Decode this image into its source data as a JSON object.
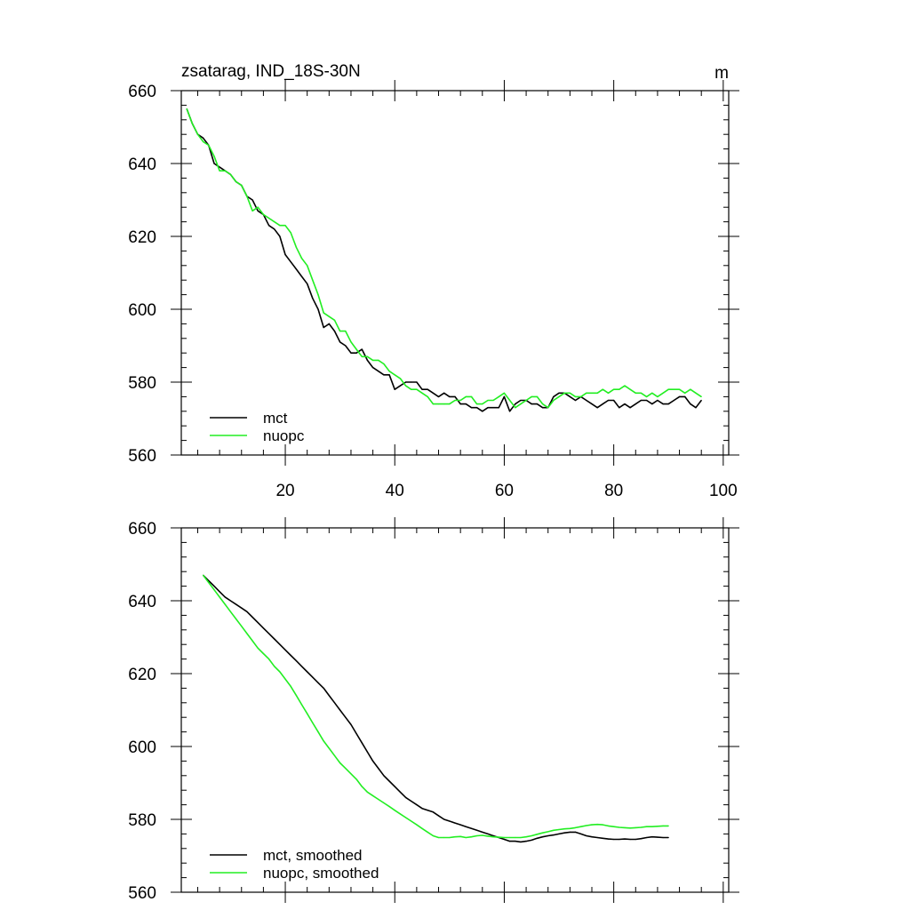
{
  "chart_data": [
    {
      "type": "line",
      "title": "zsatarag, IND_18S-30N",
      "units": "m",
      "xlabel": "",
      "ylabel": "",
      "xlim": [
        1,
        101
      ],
      "ylim": [
        560,
        660
      ],
      "xticks": [
        20,
        40,
        60,
        80,
        100
      ],
      "xtick_labels": [
        "20",
        "40",
        "60",
        "80",
        "100"
      ],
      "yticks": [
        560,
        580,
        600,
        620,
        640,
        660
      ],
      "ytick_labels": [
        "560",
        "580",
        "600",
        "620",
        "640",
        "660"
      ],
      "show_xtick_labels": true,
      "legend_position": "bottom-left",
      "series": [
        {
          "name": "mct",
          "color": "#000000",
          "x_start": 2,
          "values": [
            655,
            651,
            648,
            647,
            645,
            640,
            639,
            638,
            637,
            635,
            634,
            631,
            630,
            627,
            626,
            623,
            622,
            620,
            615,
            613,
            611,
            609,
            607,
            603,
            600,
            595,
            596,
            594,
            591,
            590,
            588,
            588,
            589,
            586,
            584,
            583,
            582,
            582,
            578,
            579,
            580,
            580,
            580,
            578,
            578,
            577,
            576,
            577,
            576,
            576,
            574,
            574,
            573,
            573,
            572,
            573,
            573,
            573,
            576,
            572,
            574,
            575,
            575,
            574,
            574,
            573,
            573,
            576,
            577,
            577,
            576,
            575,
            576,
            575,
            574,
            573,
            574,
            575,
            575,
            573,
            574,
            573,
            574,
            575,
            575,
            574,
            575,
            574,
            574,
            575,
            576,
            576,
            574,
            573,
            575
          ]
        },
        {
          "name": "nuopc",
          "color": "#22ee22",
          "x_start": 2,
          "values": [
            655,
            651,
            648,
            646,
            645,
            642,
            638,
            638,
            637,
            635,
            634,
            631,
            627,
            628,
            626,
            625,
            624,
            623,
            623,
            621,
            617,
            614,
            612,
            608,
            604,
            599,
            598,
            597,
            594,
            594,
            591,
            589,
            587,
            587,
            586,
            586,
            585,
            583,
            582,
            581,
            579,
            578,
            578,
            577,
            576,
            574,
            574,
            574,
            574,
            575,
            575,
            576,
            576,
            574,
            574,
            575,
            575,
            576,
            577,
            575,
            573,
            574,
            575,
            576,
            576,
            574,
            573,
            575,
            576,
            577,
            577,
            576,
            576,
            577,
            577,
            577,
            578,
            577,
            578,
            578,
            579,
            578,
            577,
            577,
            576,
            577,
            576,
            577,
            578,
            578,
            578,
            577,
            578,
            577,
            576
          ]
        }
      ]
    },
    {
      "type": "line",
      "title": "",
      "units": "",
      "xlabel": "",
      "ylabel": "",
      "xlim": [
        1,
        101
      ],
      "ylim": [
        560,
        660
      ],
      "xticks": [
        20,
        40,
        60,
        80,
        100
      ],
      "xtick_labels": [],
      "yticks": [
        560,
        580,
        600,
        620,
        640,
        660
      ],
      "ytick_labels": [
        "560",
        "580",
        "600",
        "620",
        "640",
        "660"
      ],
      "show_xtick_labels": false,
      "legend_position": "bottom-left",
      "series": [
        {
          "name": "mct, smoothed",
          "color": "#000000",
          "x_start": 5,
          "values": [
            647,
            645.5,
            644,
            642.5,
            641,
            640,
            639,
            638,
            637,
            635.5,
            634,
            632.5,
            631,
            629.5,
            628,
            626.5,
            625,
            623.5,
            622,
            620.5,
            619,
            617.5,
            616,
            614,
            612,
            610,
            608,
            606,
            603.5,
            601,
            598.5,
            596,
            594,
            592,
            590.5,
            589,
            587.5,
            586,
            585,
            584,
            583,
            582.5,
            582,
            581,
            580,
            579.5,
            579,
            578.5,
            578,
            577.5,
            577,
            576.5,
            576,
            575.5,
            575,
            574.5,
            574,
            574,
            573.8,
            574,
            574.3,
            574.8,
            575.2,
            575.5,
            575.7,
            576,
            576.3,
            576.5,
            576.5,
            576,
            575.5,
            575.2,
            575,
            574.8,
            574.6,
            574.5,
            574.5,
            574.6,
            574.5,
            574.5,
            574.7,
            575,
            575.2,
            575.1,
            575,
            575
          ]
        },
        {
          "name": "nuopc, smoothed",
          "color": "#22ee22",
          "x_start": 5,
          "values": [
            647,
            645,
            643,
            641,
            639,
            637,
            635,
            633,
            631,
            629,
            627,
            625.5,
            624,
            622,
            620.5,
            618.5,
            616.5,
            614,
            611.5,
            609,
            606.5,
            604,
            601.5,
            599.5,
            597.5,
            595.5,
            594,
            592.5,
            591,
            589,
            587.5,
            586.5,
            585.5,
            584.5,
            583.5,
            582.5,
            581.5,
            580.5,
            579.5,
            578.5,
            577.5,
            576.5,
            575.5,
            575,
            575,
            575,
            575.2,
            575.3,
            575,
            575.2,
            575.5,
            575.6,
            575.4,
            575.2,
            575.1,
            575,
            575,
            575,
            575,
            575.2,
            575.5,
            575.9,
            576.3,
            576.6,
            577,
            577.2,
            577.4,
            577.5,
            577.7,
            578,
            578.3,
            578.5,
            578.6,
            578.5,
            578.2,
            578,
            577.8,
            577.7,
            577.6,
            577.7,
            577.8,
            578,
            578,
            578.1,
            578.2,
            578.2
          ]
        }
      ]
    }
  ]
}
